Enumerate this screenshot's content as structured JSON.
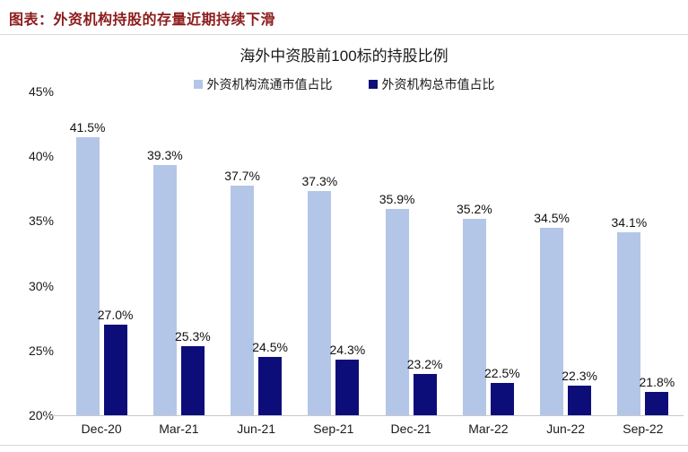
{
  "caption": "图表：外资机构持股的存量近期持续下滑",
  "chart_data": {
    "type": "bar",
    "title": "海外中资股前100标的持股比例",
    "categories": [
      "Dec-20",
      "Mar-21",
      "Jun-21",
      "Sep-21",
      "Dec-21",
      "Mar-22",
      "Jun-22",
      "Sep-22"
    ],
    "series": [
      {
        "name": "外资机构流通市值占比",
        "color": "#b4c6e7",
        "values": [
          41.5,
          39.3,
          37.7,
          37.3,
          35.9,
          35.2,
          34.5,
          34.1
        ]
      },
      {
        "name": "外资机构总市值占比",
        "color": "#0d0d7a",
        "values": [
          27.0,
          25.3,
          24.5,
          24.3,
          23.2,
          22.5,
          22.3,
          21.8
        ]
      }
    ],
    "ylim": [
      20,
      45
    ],
    "ytick_step": 5,
    "ytick_suffix": "%",
    "value_label_suffix": "%",
    "grid": false,
    "legend_position": "top",
    "xlabel": "",
    "ylabel": ""
  },
  "colors": {
    "caption_red": "#8c1b1b",
    "axis_line": "#c9c9c9",
    "divider": "#d9d9d9"
  }
}
